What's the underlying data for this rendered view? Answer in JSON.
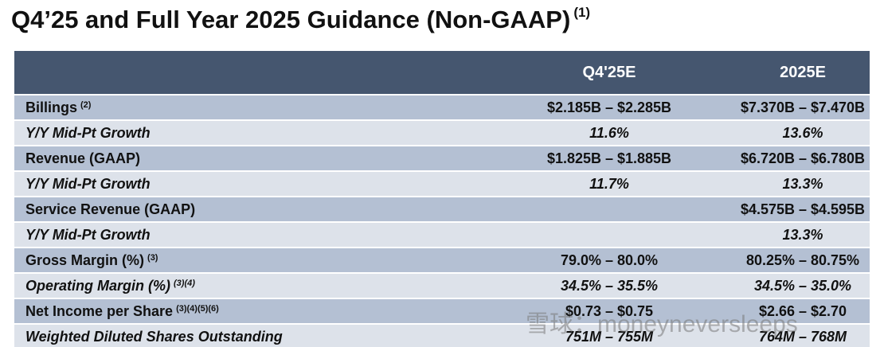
{
  "title": "Q4’25 and Full Year 2025 Guidance (Non-GAAP)",
  "title_note": "(1)",
  "table": {
    "header": [
      "Q4'25E",
      "2025E"
    ],
    "rows": [
      {
        "label": "Billings",
        "notes": "(2)",
        "q4": "$2.185B – $2.285B",
        "fy": "$7.370B – $7.470B"
      },
      {
        "label": "Y/Y Mid-Pt Growth",
        "q4": "11.6%",
        "fy": "13.6%"
      },
      {
        "label": "Revenue (GAAP)",
        "q4": "$1.825B – $1.885B",
        "fy": "$6.720B – $6.780B"
      },
      {
        "label": "Y/Y Mid-Pt Growth",
        "q4": "11.7%",
        "fy": "13.3%"
      },
      {
        "label": "Service Revenue (GAAP)",
        "fy": "$4.575B – $4.595B"
      },
      {
        "label": "Y/Y Mid-Pt Growth",
        "fy": "13.3%"
      },
      {
        "label": "Gross Margin (%)",
        "notes": "(3)",
        "q4": "79.0% – 80.0%",
        "fy": "80.25% – 80.75%"
      },
      {
        "label": "Operating Margin (%)",
        "notes": "(3)(4)",
        "q4": "34.5% – 35.5%",
        "fy": "34.5% – 35.0%"
      },
      {
        "label": "Net Income per Share",
        "notes": "(3)(4)(5)(6)",
        "q4": "$0.73 – $0.75",
        "fy": "$2.66 – $2.70"
      },
      {
        "label": "Weighted Diluted Shares Outstanding",
        "q4": "751M – 755M",
        "fy": "764M – 768M"
      }
    ]
  },
  "watermark": "雪球：moneyneversleeps"
}
